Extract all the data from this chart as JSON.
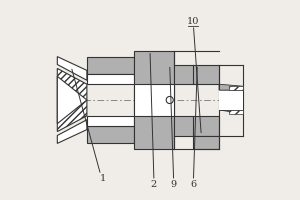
{
  "bg_color": "#f0ede8",
  "line_color": "#333333",
  "fill_color": "#b0b0b0",
  "figsize": [
    3.0,
    2.0
  ],
  "dpi": 100
}
